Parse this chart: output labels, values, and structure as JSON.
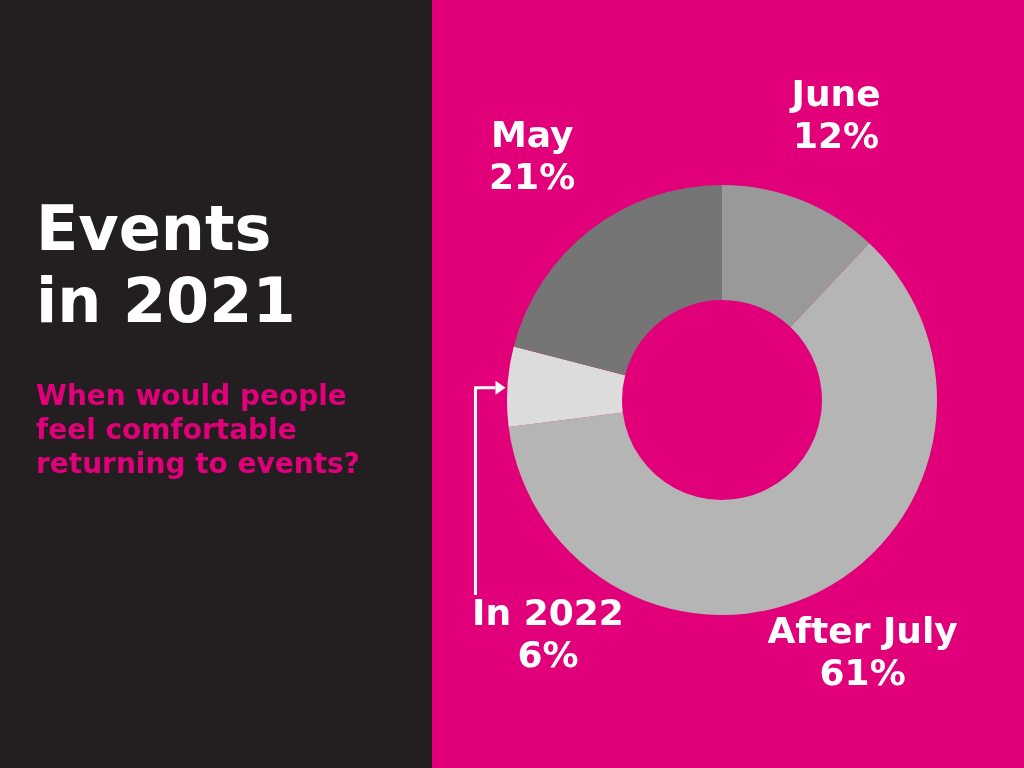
{
  "chart_data": {
    "type": "donut",
    "title": "Events in 2021",
    "subtitle": "When would people feel comfortable returning to events?",
    "categories": [
      "June",
      "After July",
      "In 2022",
      "May"
    ],
    "values": [
      12,
      61,
      6,
      21
    ],
    "value_labels": [
      "12%",
      "61%",
      "6%",
      "21%"
    ],
    "colors": [
      "#999999",
      "#b5b5b5",
      "#dcdcdc",
      "#757575"
    ]
  }
}
